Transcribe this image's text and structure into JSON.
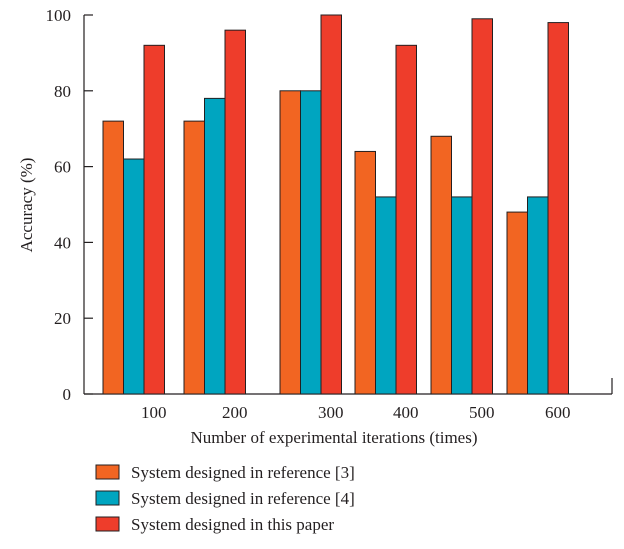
{
  "chart_data": {
    "type": "bar",
    "title": "",
    "xlabel": "Number of experimental iterations (times)",
    "ylabel": "Accuracy (%)",
    "ylim": [
      0,
      100
    ],
    "yticks": [
      0,
      20,
      40,
      60,
      80,
      100
    ],
    "categories": [
      "100",
      "200",
      "300",
      "400",
      "500",
      "600"
    ],
    "series": [
      {
        "name": "System designed in reference [3]",
        "color": "#f26522",
        "values": [
          72,
          72,
          80,
          64,
          68,
          48
        ]
      },
      {
        "name": "System designed in reference [4]",
        "color": "#00a5c0",
        "values": [
          62,
          78,
          80,
          52,
          52,
          52
        ]
      },
      {
        "name": "System designed in this paper",
        "color": "#ee3d2b",
        "values": [
          92,
          96,
          100,
          92,
          99,
          98
        ]
      }
    ],
    "legend_position": "bottom-left",
    "grid": false
  }
}
